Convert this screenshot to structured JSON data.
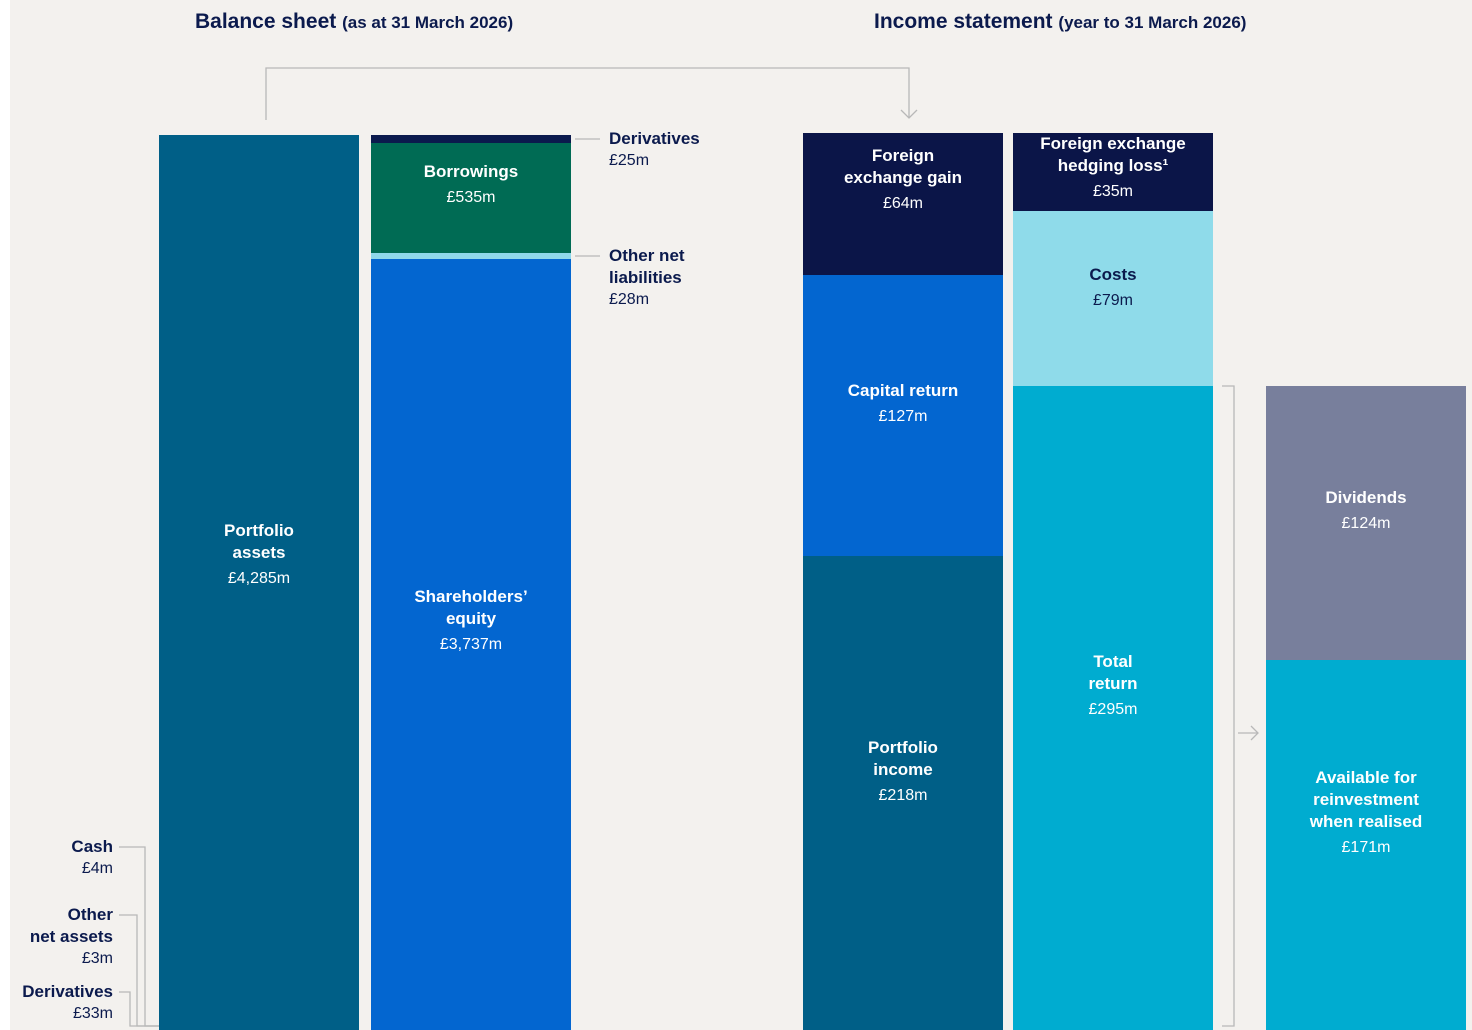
{
  "balance_sheet": {
    "title": "Balance sheet",
    "subtitle": "(as at 31 March 2026)",
    "assets": [
      {
        "label": [
          "Portfolio",
          "assets"
        ],
        "value": "£4,285m"
      },
      {
        "label": [
          "Cash"
        ],
        "value": "£4m"
      },
      {
        "label": [
          "Other",
          "net assets"
        ],
        "value": "£3m"
      },
      {
        "label": [
          "Derivatives"
        ],
        "value": "£33m"
      }
    ],
    "funding": [
      {
        "label": [
          "Derivatives"
        ],
        "value": "£25m"
      },
      {
        "label": [
          "Borrowings"
        ],
        "value": "£535m"
      },
      {
        "label": [
          "Other net",
          "liabilities"
        ],
        "value": "£28m"
      },
      {
        "label": [
          "Shareholders’",
          "equity"
        ],
        "value": "£3,737m"
      }
    ]
  },
  "income_statement": {
    "title": "Income statement",
    "subtitle": "(year to 31 March 2026)",
    "sources": [
      {
        "label": [
          "Foreign",
          "exchange gain"
        ],
        "value": "£64m"
      },
      {
        "label": [
          "Capital return"
        ],
        "value": "£127m"
      },
      {
        "label": [
          "Portfolio",
          "income"
        ],
        "value": "£218m"
      }
    ],
    "uses": [
      {
        "label": [
          "Foreign exchange",
          "hedging loss¹"
        ],
        "value": "£35m"
      },
      {
        "label": [
          "Costs"
        ],
        "value": "£79m"
      },
      {
        "label": [
          "Total",
          "return"
        ],
        "value": "£295m"
      }
    ],
    "allocation": [
      {
        "label": [
          "Dividends"
        ],
        "value": "£124m"
      },
      {
        "label": [
          "Available for",
          "reinvestment",
          "when realised"
        ],
        "value": "£171m"
      }
    ]
  }
}
